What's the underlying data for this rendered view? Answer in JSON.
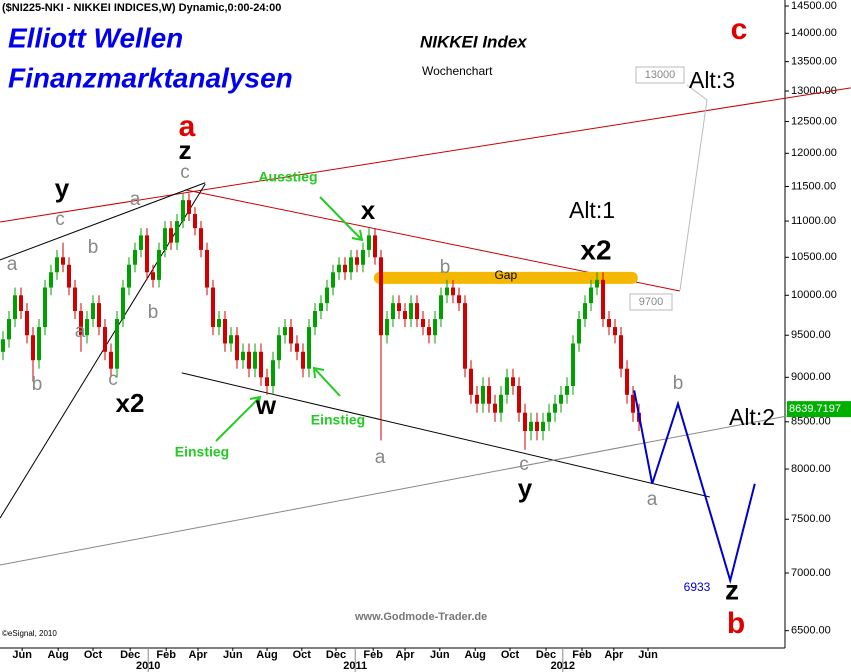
{
  "chart_data": {
    "type": "candlestick",
    "title": "($NI225-NKI - NIKKEI INDICES,W) Dynamic,0:00-24:00",
    "log_y": true,
    "xlim": [
      -0.5,
      130.33
    ],
    "ylim": [
      6357,
      14612
    ],
    "xticks": [
      {
        "value": 3.2,
        "label": "Jun"
      },
      {
        "value": 9.2,
        "label": "Aug"
      },
      {
        "value": 15,
        "label": "Oct"
      },
      {
        "value": 21.2,
        "label": "Dec"
      },
      {
        "value": 27.2,
        "label": "Feb"
      },
      {
        "value": 32.5,
        "label": "Apr"
      },
      {
        "value": 38.3,
        "label": "Jun"
      },
      {
        "value": 44,
        "label": "Aug"
      },
      {
        "value": 49.8,
        "label": "Oct"
      },
      {
        "value": 55.5,
        "label": "Dec"
      },
      {
        "value": 61.7,
        "label": "Feb"
      },
      {
        "value": 67,
        "label": "Apr"
      },
      {
        "value": 72.8,
        "label": "Jun"
      },
      {
        "value": 78.7,
        "label": "Aug"
      },
      {
        "value": 84.5,
        "label": "Oct"
      },
      {
        "value": 90.5,
        "label": "Dec"
      },
      {
        "value": 96.5,
        "label": "Feb"
      },
      {
        "value": 101.8,
        "label": "Apr"
      },
      {
        "value": 107.5,
        "label": "Jun"
      }
    ],
    "year_ticks": [
      {
        "value": 24.2,
        "label": "2010"
      },
      {
        "value": 58.7,
        "label": "2011"
      },
      {
        "value": 93.3,
        "label": "2012"
      }
    ],
    "yticks": [
      {
        "value": 6500,
        "label": "6500.00"
      },
      {
        "value": 7000,
        "label": "7000.00"
      },
      {
        "value": 7500,
        "label": "7500.00"
      },
      {
        "value": 8000,
        "label": "8000.00"
      },
      {
        "value": 8500,
        "label": "8500.00"
      },
      {
        "value": 9000,
        "label": "9000.00"
      },
      {
        "value": 9500,
        "label": "9500.00"
      },
      {
        "value": 10000,
        "label": "10000.00"
      },
      {
        "value": 10500,
        "label": "10500.00"
      },
      {
        "value": 11000,
        "label": "11000.00"
      },
      {
        "value": 11500,
        "label": "11500.00"
      },
      {
        "value": 12000,
        "label": "12000.00"
      },
      {
        "value": 12500,
        "label": "12500.00"
      },
      {
        "value": 13000,
        "label": "13000.00"
      },
      {
        "value": 13500,
        "label": "13500.00"
      },
      {
        "value": 14000,
        "label": "14000.00"
      },
      {
        "value": 14500,
        "label": "14500.00"
      }
    ],
    "up_color": "#00a000",
    "down_color": "#d00000",
    "open": [
      9300,
      9450,
      9700,
      10000,
      9800,
      9500,
      9200,
      9600,
      10100,
      10300,
      10500,
      10400,
      10100,
      9800,
      9500,
      9700,
      9900,
      9600,
      9300,
      9100,
      9700,
      10100,
      10400,
      10600,
      10800,
      10300,
      10200,
      10600,
      10900,
      10700,
      11000,
      11300,
      11100,
      10900,
      10600,
      10100,
      9600,
      9700,
      9400,
      9500,
      9200,
      9300,
      9100,
      9300,
      9000,
      8900,
      9200,
      9500,
      9600,
      9400,
      9300,
      9100,
      9600,
      9800,
      9900,
      10100,
      10300,
      10400,
      10300,
      10500,
      10400,
      10600,
      10800,
      10500,
      9500,
      9700,
      9900,
      9800,
      9700,
      9900,
      9700,
      9600,
      9500,
      9700,
      10000,
      10100,
      10000,
      9900,
      9100,
      8800,
      8700,
      8900,
      8700,
      8600,
      8800,
      9000,
      8900,
      8600,
      8400,
      8500,
      8400,
      8500,
      8600,
      8700,
      8800,
      8900,
      9400,
      9700,
      9900,
      10100,
      10200,
      9700,
      9600,
      9500,
      9100,
      8800,
      8600
    ],
    "high": [
      9550,
      9800,
      10100,
      10100,
      9900,
      9600,
      9700,
      10200,
      10400,
      10600,
      10700,
      10500,
      10200,
      9900,
      9800,
      10000,
      10000,
      9700,
      9400,
      9800,
      10200,
      10500,
      10700,
      10900,
      10900,
      10400,
      10700,
      11000,
      11000,
      11100,
      11400,
      11400,
      11200,
      11000,
      10700,
      10200,
      9800,
      9800,
      9600,
      9600,
      9400,
      9400,
      9400,
      9400,
      9100,
      9300,
      9600,
      9700,
      9700,
      9500,
      9400,
      9700,
      9900,
      10000,
      10200,
      10400,
      10500,
      10500,
      10600,
      10600,
      10700,
      10900,
      10900,
      10600,
      9800,
      10000,
      10000,
      9900,
      10000,
      10000,
      9800,
      9700,
      9800,
      10100,
      10200,
      10200,
      10100,
      10000,
      9200,
      8900,
      9000,
      9000,
      8800,
      8900,
      9100,
      9100,
      9000,
      8700,
      8600,
      8600,
      8600,
      8700,
      8800,
      8900,
      9000,
      9500,
      9800,
      10000,
      10200,
      10300,
      10300,
      9800,
      9700,
      9600,
      9200,
      8900,
      8700
    ],
    "low": [
      9200,
      9350,
      9600,
      9700,
      9400,
      8950,
      9100,
      9500,
      10000,
      10200,
      10300,
      10000,
      9700,
      9300,
      9400,
      9600,
      9500,
      9200,
      9000,
      9000,
      9600,
      10000,
      10300,
      10500,
      10200,
      10100,
      10100,
      10500,
      10600,
      10600,
      10900,
      11000,
      10800,
      10500,
      10000,
      9500,
      9500,
      9300,
      9300,
      9100,
      9100,
      9000,
      9000,
      8900,
      8800,
      8800,
      9100,
      9400,
      9300,
      9200,
      9000,
      9000,
      9500,
      9700,
      9800,
      10000,
      10200,
      10200,
      10200,
      10300,
      10300,
      10500,
      10400,
      8300,
      9400,
      9600,
      9700,
      9600,
      9600,
      9600,
      9500,
      9400,
      9400,
      9600,
      9900,
      9900,
      9800,
      9000,
      8700,
      8600,
      8600,
      8600,
      8500,
      8500,
      8700,
      8800,
      8500,
      8200,
      8300,
      8300,
      8300,
      8400,
      8500,
      8600,
      8700,
      8800,
      9300,
      9600,
      9800,
      10000,
      9600,
      9500,
      9400,
      9000,
      8700,
      8500,
      8400
    ],
    "close": [
      9450,
      9700,
      10000,
      9800,
      9500,
      9200,
      9600,
      10100,
      10300,
      10500,
      10400,
      10100,
      9800,
      9500,
      9700,
      9900,
      9600,
      9300,
      9100,
      9700,
      10100,
      10400,
      10600,
      10800,
      10300,
      10200,
      10600,
      10900,
      10700,
      11000,
      11300,
      11100,
      10900,
      10600,
      10100,
      9600,
      9700,
      9400,
      9500,
      9200,
      9300,
      9100,
      9300,
      9000,
      8900,
      9200,
      9500,
      9600,
      9400,
      9300,
      9100,
      9600,
      9800,
      9900,
      10100,
      10300,
      10400,
      10300,
      10500,
      10400,
      10600,
      10800,
      10500,
      9500,
      9700,
      9900,
      9800,
      9700,
      9900,
      9700,
      9600,
      9500,
      9700,
      10000,
      10100,
      10000,
      9900,
      9100,
      8800,
      8700,
      8900,
      8700,
      8600,
      8800,
      9000,
      8900,
      8600,
      8400,
      8500,
      8400,
      8500,
      8600,
      8700,
      8800,
      8900,
      9400,
      9700,
      9900,
      10100,
      10200,
      9700,
      9600,
      9500,
      9100,
      8800,
      8600,
      8500
    ],
    "last_value": 8639.7197,
    "last_color": "#00b000",
    "projection": {
      "color": "#0000cc",
      "x": [
        105.2,
        108.2,
        112.5,
        121.2,
        125.3
      ],
      "values": [
        8850,
        7850,
        8700,
        6933,
        7850
      ]
    },
    "targets": [
      13000,
      9700
    ],
    "trendlines": [
      {
        "color": "#cc0000",
        "x": [
          -0.5,
          141.3
        ],
        "values": [
          10987,
          13053
        ]
      },
      {
        "color": "#cc0000",
        "x": [
          30.33,
          112.8
        ],
        "values": [
          11451,
          10055
        ]
      },
      {
        "color": "#000000",
        "x": [
          -0.5,
          33.7
        ],
        "values": [
          10464,
          11555
        ]
      },
      {
        "color": "#000000",
        "x": [
          -0.5,
          33.7
        ],
        "values": [
          7511,
          11536
        ]
      },
      {
        "color": "#000000",
        "x": [
          29.8,
          117.8
        ],
        "values": [
          9051,
          7718
        ]
      },
      {
        "color": "#888888",
        "x": [
          -0.5,
          141.3
        ],
        "values": [
          7072,
          8698
        ]
      }
    ],
    "gap": {
      "label": "Gap",
      "color": "#f5b800",
      "x": [
        62.8,
        104.8
      ],
      "value": 10226
    }
  },
  "texts": {
    "brand1": "Elliott Wellen",
    "brand2": "Finanzmarktanalysen",
    "index": "NIKKEI Index",
    "period": "Wochenchart",
    "site": "www.Godmode-Trader.de",
    "copyright": "©eSignal, 2010"
  },
  "annotations": [
    "a",
    "z",
    "c",
    "y",
    "c",
    "a",
    "b",
    "a",
    "a",
    "b",
    "b",
    "c",
    "x2",
    "Ausstieg",
    "x",
    "w",
    "Einstieg",
    "Einstieg",
    "b",
    "a",
    "Alt:1",
    "x2",
    "c",
    "y",
    "Alt:3",
    "c",
    "b",
    "a",
    "Alt:2",
    "z",
    "b"
  ]
}
